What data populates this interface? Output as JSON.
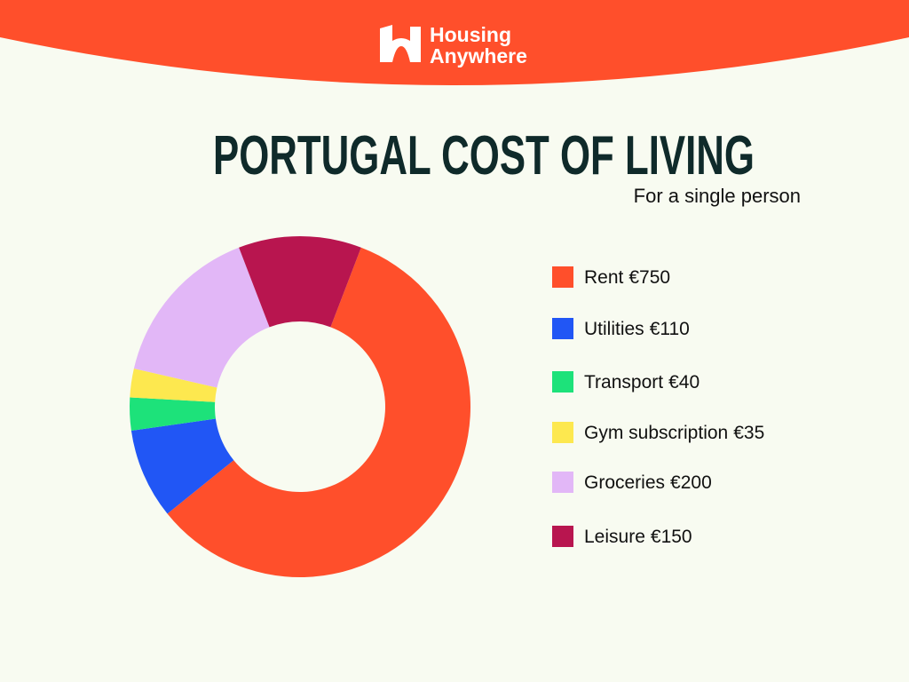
{
  "brand": {
    "line1": "Housing",
    "line2": "Anywhere"
  },
  "chart_data": {
    "type": "donut",
    "title": "PORTUGAL COST OF LIVING",
    "subtitle": "For a single person",
    "categories": [
      "Rent",
      "Utilities",
      "Transport",
      "Gym subscription",
      "Groceries",
      "Leisure"
    ],
    "values": [
      750,
      110,
      40,
      35,
      200,
      150
    ],
    "value_labels": [
      "€750",
      "€110",
      "€40",
      "€35",
      "€200",
      "€150"
    ],
    "colors": [
      "#ff4f2b",
      "#2156f5",
      "#1de27a",
      "#fde84f",
      "#e2b7f7",
      "#b8154f"
    ],
    "legend": "right"
  }
}
